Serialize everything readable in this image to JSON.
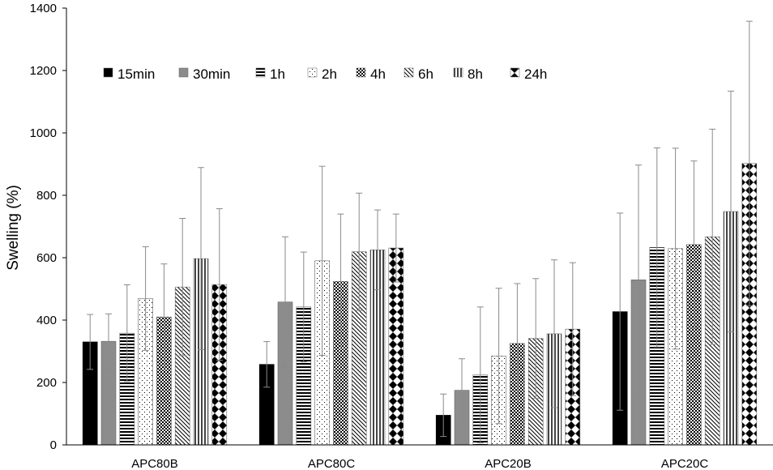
{
  "chart_data": {
    "type": "bar",
    "title": "",
    "xlabel": "",
    "ylabel": "Swelling (%)",
    "ylim": [
      0,
      1400
    ],
    "yticks": [
      0,
      200,
      400,
      600,
      800,
      1000,
      1200,
      1400
    ],
    "grid": false,
    "legend_position": "top-left",
    "categories": [
      "APC80B",
      "APC80C",
      "APC20B",
      "APC20C"
    ],
    "series": [
      {
        "name": "15min",
        "pattern": "solid-black",
        "values": [
          330,
          258,
          95,
          427
        ],
        "errors": [
          88,
          73,
          68,
          316
        ]
      },
      {
        "name": "30min",
        "pattern": "solid-gray",
        "values": [
          332,
          458,
          175,
          529
        ],
        "errors": [
          88,
          209,
          101,
          368
        ]
      },
      {
        "name": "1h",
        "pattern": "horizontal-lines",
        "values": [
          358,
          442,
          224,
          633
        ],
        "errors": [
          155,
          176,
          218,
          319
        ]
      },
      {
        "name": "2h",
        "pattern": "dots",
        "values": [
          469,
          590,
          285,
          629
        ],
        "errors": [
          166,
          303,
          217,
          322
        ]
      },
      {
        "name": "4h",
        "pattern": "checker",
        "values": [
          410,
          524,
          325,
          642
        ],
        "errors": [
          170,
          216,
          192,
          268
        ]
      },
      {
        "name": "6h",
        "pattern": "diagonal-lines",
        "values": [
          506,
          619,
          341,
          667
        ],
        "errors": [
          220,
          188,
          192,
          345
        ]
      },
      {
        "name": "8h",
        "pattern": "vertical-lines",
        "values": [
          597,
          625,
          356,
          748
        ],
        "errors": [
          292,
          128,
          237,
          386
        ]
      },
      {
        "name": "24h",
        "pattern": "diamonds",
        "values": [
          514,
          631,
          371,
          902
        ],
        "errors": [
          243,
          109,
          213,
          456
        ]
      }
    ]
  }
}
